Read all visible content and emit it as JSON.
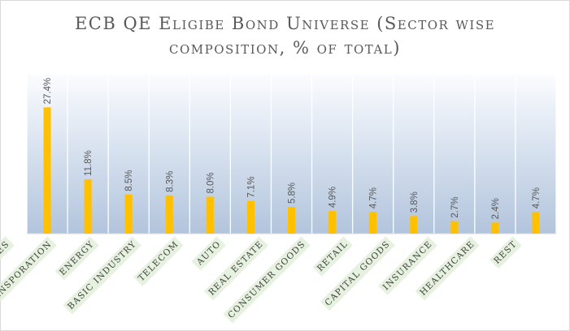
{
  "chart_data": {
    "type": "bar",
    "title_lines": [
      "ECB QE Eligibe Bond Universe (Sector wise",
      "composition, % of total)"
    ],
    "categories": [
      "Utilities",
      "Transporation",
      "Energy",
      "Basic Industry",
      "Telecom",
      "Auto",
      "Real Estate",
      "Consumer Goods",
      "Retail",
      "Capital Goods",
      "Insurance",
      "Healthcare",
      "Rest"
    ],
    "values": [
      27.4,
      11.8,
      8.5,
      8.3,
      8.0,
      7.1,
      5.8,
      4.9,
      4.7,
      3.8,
      2.7,
      2.4,
      4.7
    ],
    "value_labels": [
      "27.4%",
      "11.8%",
      "8.5%",
      "8.3%",
      "8.0%",
      "7.1%",
      "5.8%",
      "4.9%",
      "4.7%",
      "3.8%",
      "2.7%",
      "2.4%",
      "4.7%"
    ],
    "ylim": [
      0,
      30
    ],
    "bar_color": "#ffc000",
    "grid": true
  }
}
